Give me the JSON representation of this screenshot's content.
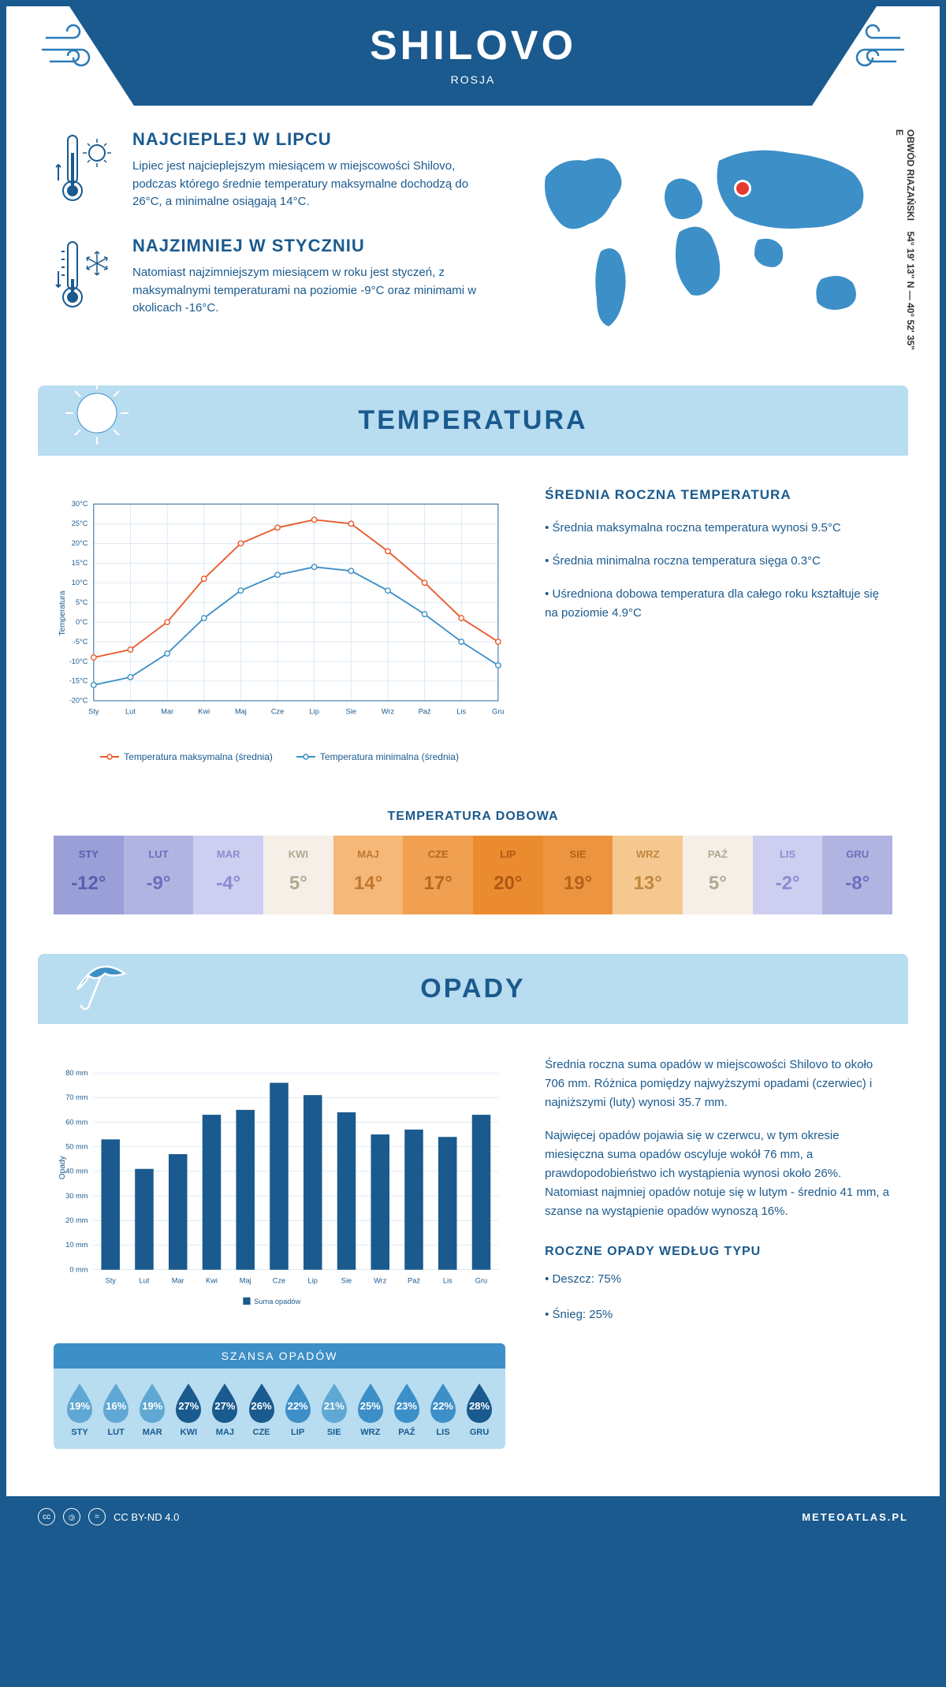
{
  "header": {
    "title": "SHILOVO",
    "subtitle": "ROSJA"
  },
  "coords": {
    "text": "54° 19' 13\" N — 40° 52' 35\" E",
    "region": "OBWÓD RIAZAŃSKI"
  },
  "intro": {
    "hot": {
      "title": "NAJCIEPLEJ W LIPCU",
      "text": "Lipiec jest najcieplejszym miesiącem w miejscowości Shilovo, podczas którego średnie temperatury maksymalne dochodzą do 26°C, a minimalne osiągają 14°C."
    },
    "cold": {
      "title": "NAJZIMNIEJ W STYCZNIU",
      "text": "Natomiast najzimniejszym miesiącem w roku jest styczeń, z maksymalnymi temperaturami na poziomie -9°C oraz minimami w okolicach -16°C."
    }
  },
  "months": [
    "Sty",
    "Lut",
    "Mar",
    "Kwi",
    "Maj",
    "Cze",
    "Lip",
    "Sie",
    "Wrz",
    "Paź",
    "Lis",
    "Gru"
  ],
  "months_upper": [
    "STY",
    "LUT",
    "MAR",
    "KWI",
    "MAJ",
    "CZE",
    "LIP",
    "SIE",
    "WRZ",
    "PAŹ",
    "LIS",
    "GRU"
  ],
  "temperature": {
    "section_title": "TEMPERATURA",
    "chart": {
      "type": "line",
      "ylabel": "Temperatura",
      "ylim": [
        -20,
        30
      ],
      "ytick_step": 5,
      "grid_color": "#b8d4e8",
      "background": "#ffffff",
      "series": [
        {
          "name": "Temperatura maksymalna (średnia)",
          "color": "#e85a2c",
          "values": [
            -9,
            -7,
            0,
            11,
            20,
            24,
            26,
            25,
            18,
            10,
            1,
            -5
          ]
        },
        {
          "name": "Temperatura minimalna (średnia)",
          "color": "#3d8fc7",
          "values": [
            -16,
            -14,
            -8,
            1,
            8,
            12,
            14,
            13,
            8,
            2,
            -5,
            -11
          ]
        }
      ]
    },
    "side": {
      "title": "ŚREDNIA ROCZNA TEMPERATURA",
      "bullets": [
        "Średnia maksymalna roczna temperatura wynosi 9.5°C",
        "Średnia minimalna roczna temperatura sięga 0.3°C",
        "Uśredniona dobowa temperatura dla całego roku kształtuje się na poziomie 4.9°C"
      ]
    },
    "dobowa": {
      "title": "TEMPERATURA DOBOWA",
      "values": [
        "-12°",
        "-9°",
        "-4°",
        "5°",
        "14°",
        "17°",
        "20°",
        "19°",
        "13°",
        "5°",
        "-2°",
        "-8°"
      ],
      "cell_bg": [
        "#9b9fd8",
        "#b1b4e0",
        "#cdcef0",
        "#f5efe8",
        "#f5b878",
        "#f0a050",
        "#eb8b30",
        "#ed9440",
        "#f5c890",
        "#f5efe8",
        "#cdcef0",
        "#b1b4e0"
      ],
      "cell_fg": [
        "#5a5eb0",
        "#6b6fc0",
        "#8a8dd0",
        "#b0a890",
        "#c07830",
        "#b86820",
        "#b05810",
        "#b86018",
        "#c08840",
        "#b0a890",
        "#8a8dd0",
        "#6b6fc0"
      ]
    }
  },
  "opady": {
    "section_title": "OPADY",
    "chart": {
      "type": "bar",
      "ylabel": "Opady",
      "ylim": [
        0,
        80
      ],
      "ytick_step": 10,
      "unit": "mm",
      "bar_color": "#1a5a8e",
      "grid_color": "#b8d4e8",
      "legend": "Suma opadów",
      "values": [
        53,
        41,
        47,
        63,
        65,
        76,
        71,
        64,
        55,
        57,
        54,
        63
      ]
    },
    "side": {
      "para1": "Średnia roczna suma opadów w miejscowości Shilovo to około 706 mm. Różnica pomiędzy najwyższymi opadami (czerwiec) i najniższymi (luty) wynosi 35.7 mm.",
      "para2": "Najwięcej opadów pojawia się w czerwcu, w tym okresie miesięczna suma opadów oscyluje wokół 76 mm, a prawdopodobieństwo ich wystąpienia wynosi około 26%. Natomiast najmniej opadów notuje się w lutym - średnio 41 mm, a szanse na wystąpienie opadów wynoszą 16%."
    },
    "szansa": {
      "title": "SZANSA OPADÓW",
      "values": [
        "19%",
        "16%",
        "19%",
        "27%",
        "27%",
        "26%",
        "22%",
        "21%",
        "25%",
        "23%",
        "22%",
        "28%"
      ],
      "colors": [
        "#5fa8d3",
        "#5fa8d3",
        "#5fa8d3",
        "#1a5a8e",
        "#1a5a8e",
        "#1a5a8e",
        "#3d8fc7",
        "#5fa8d3",
        "#3d8fc7",
        "#3d8fc7",
        "#3d8fc7",
        "#1a5a8e"
      ]
    },
    "roczne": {
      "title": "ROCZNE OPADY WEDŁUG TYPU",
      "items": [
        "Deszcz: 75%",
        "Śnieg: 25%"
      ]
    }
  },
  "footer": {
    "license": "CC BY-ND 4.0",
    "site": "METEOATLAS.PL"
  }
}
